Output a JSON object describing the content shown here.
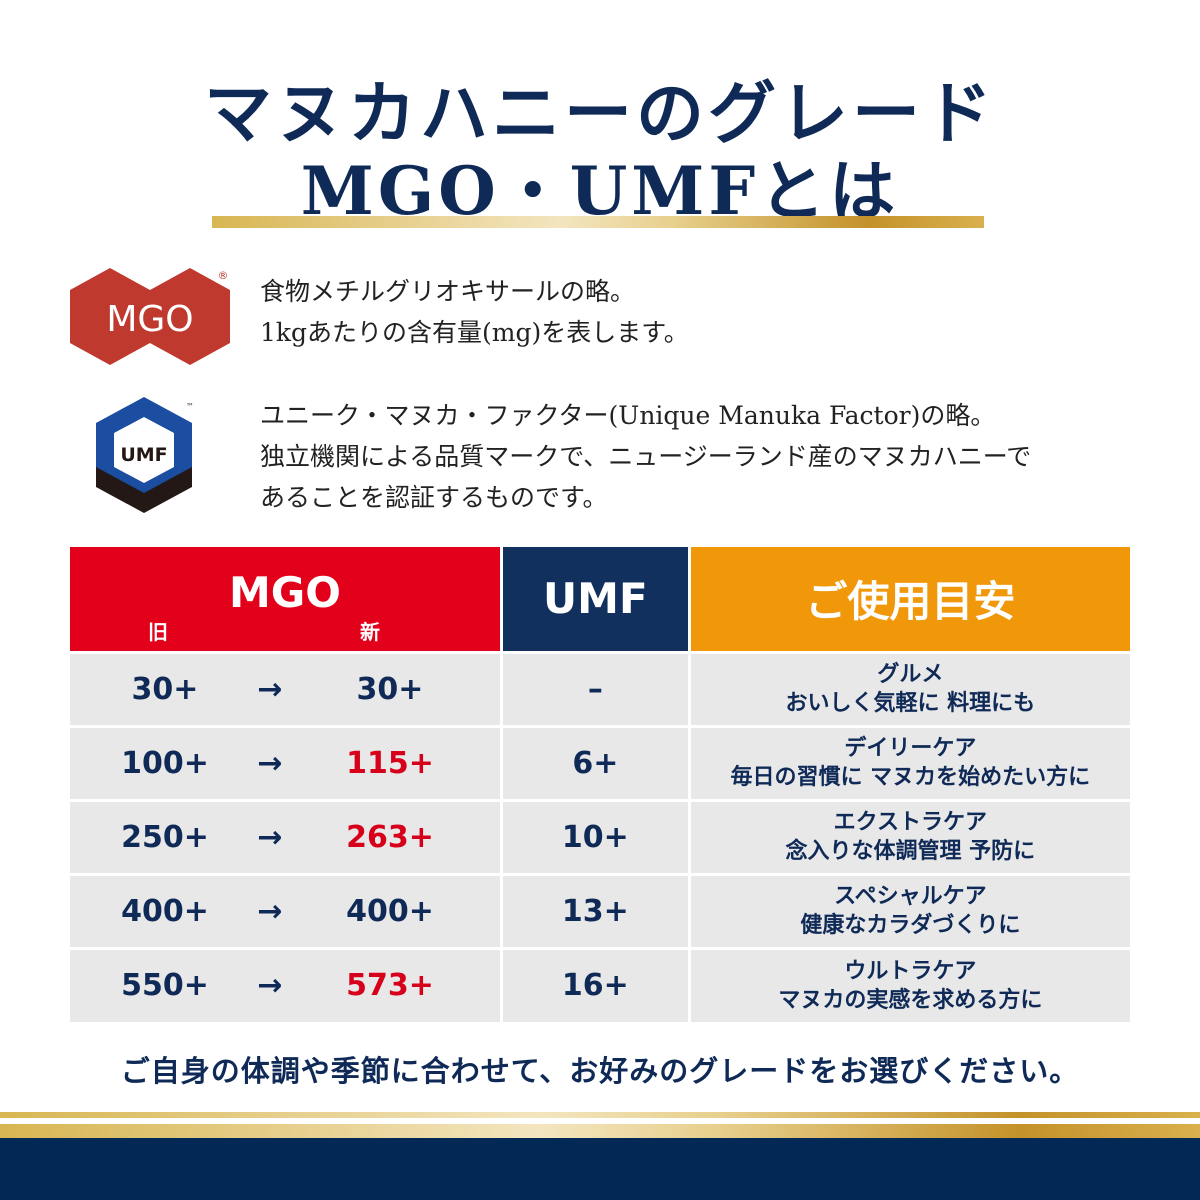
{
  "title": {
    "line1": "マヌカハニーのグレード",
    "line2": "MGO・UMFとは"
  },
  "mgo_logo": {
    "text": "MGO",
    "mark": "®"
  },
  "umf_logo": {
    "text": "UMF",
    "mark": "™"
  },
  "mgo_desc": [
    "食物メチルグリオキサールの略。",
    "1kgあたりの含有量(mg)を表します。"
  ],
  "umf_desc": [
    "ユニーク・マヌカ・ファクター(Unique Manuka Factor)の略。",
    "独立機関による品質マークで、ニュージーランド産のマヌカハニーで",
    "あることを認証するものです。"
  ],
  "table": {
    "headers": {
      "mgo": "MGO",
      "old": "旧",
      "new": "新",
      "umf": "UMF",
      "usage": "ご使用目安"
    },
    "arrow": "→",
    "rows": [
      {
        "old": "30+",
        "new": "30+",
        "new_changed": false,
        "umf": "–",
        "usage1": "グルメ",
        "usage2": "おいしく気軽に 料理にも"
      },
      {
        "old": "100+",
        "new": "115+",
        "new_changed": true,
        "umf": "6+",
        "usage1": "デイリーケア",
        "usage2": "毎日の習慣に マヌカを始めたい方に"
      },
      {
        "old": "250+",
        "new": "263+",
        "new_changed": true,
        "umf": "10+",
        "usage1": "エクストラケア",
        "usage2": "念入りな体調管理 予防に"
      },
      {
        "old": "400+",
        "new": "400+",
        "new_changed": false,
        "umf": "13+",
        "usage1": "スペシャルケア",
        "usage2": "健康なカラダづくりに"
      },
      {
        "old": "550+",
        "new": "573+",
        "new_changed": true,
        "umf": "16+",
        "usage1": "ウルトラケア",
        "usage2": "マヌカの実感を求める方に"
      }
    ]
  },
  "footer": "ご自身の体調や季節に合わせて、お好みのグレードをお選びください。",
  "colors": {
    "navy": "#0f2a57",
    "red": "#e2001a",
    "orange": "#f0970a",
    "gold": "#d8b653"
  }
}
